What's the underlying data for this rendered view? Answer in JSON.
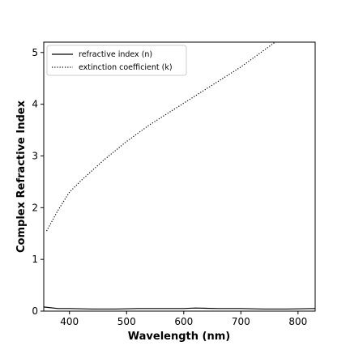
{
  "chart_data": {
    "type": "line",
    "xlabel": "Wavelength (nm)",
    "ylabel": "Complex Refractive Index",
    "xlim": [
      355,
      830
    ],
    "ylim": [
      0,
      5.2
    ],
    "xticks": [
      400,
      500,
      600,
      700,
      800
    ],
    "yticks": [
      0,
      1,
      2,
      3,
      4,
      5
    ],
    "grid": false,
    "legend_position": "top-left",
    "series": [
      {
        "name": "refractive index (n)",
        "style": "solid",
        "color": "#000000",
        "x": [
          355,
          380,
          400,
          440,
          480,
          520,
          560,
          600,
          620,
          660,
          700,
          740,
          780,
          830
        ],
        "y": [
          0.08,
          0.05,
          0.05,
          0.04,
          0.04,
          0.05,
          0.05,
          0.05,
          0.06,
          0.05,
          0.05,
          0.04,
          0.04,
          0.05
        ]
      },
      {
        "name": "extinction coefficient (k)",
        "style": "dotted",
        "color": "#000000",
        "x": [
          360,
          380,
          400,
          420,
          440,
          460,
          480,
          500,
          520,
          540,
          560,
          580,
          600,
          620,
          640,
          660,
          680,
          700,
          720,
          740,
          760
        ],
        "y": [
          1.55,
          1.95,
          2.3,
          2.52,
          2.72,
          2.92,
          3.1,
          3.28,
          3.44,
          3.6,
          3.74,
          3.88,
          4.02,
          4.16,
          4.3,
          4.44,
          4.58,
          4.72,
          4.88,
          5.04,
          5.2
        ]
      }
    ]
  }
}
